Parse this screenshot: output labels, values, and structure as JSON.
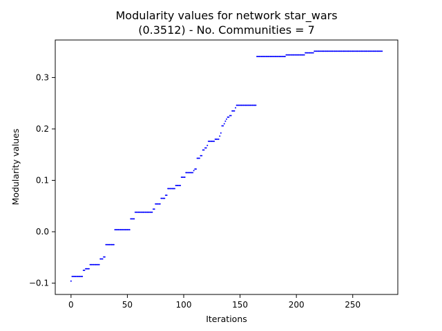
{
  "chart_data": {
    "type": "scatter",
    "title": "Modularity values for network star_wars",
    "subtitle": "(0.3512) - No. Communities = 7",
    "xlabel": "Iterations",
    "ylabel": "Modularity values",
    "xlim": [
      -14,
      290
    ],
    "ylim": [
      -0.122,
      0.373
    ],
    "x_ticks": [
      0,
      50,
      100,
      150,
      200,
      250
    ],
    "x_tick_labels": [
      "0",
      "50",
      "100",
      "150",
      "200",
      "250"
    ],
    "y_ticks": [
      -0.1,
      0.0,
      0.1,
      0.2,
      0.3
    ],
    "y_tick_labels": [
      "−0.1",
      "0.0",
      "0.1",
      "0.2",
      "0.3"
    ],
    "grid": false,
    "marker_color": "#0000ff",
    "series": [
      {
        "segments": [
          {
            "x_start": 0,
            "x_end": 0,
            "y": -0.096
          },
          {
            "x_start": 1,
            "x_end": 10,
            "y": -0.087
          },
          {
            "x_start": 11,
            "x_end": 12,
            "y": -0.075
          },
          {
            "x_start": 13,
            "x_end": 16,
            "y": -0.072
          },
          {
            "x_start": 17,
            "x_end": 25,
            "y": -0.064
          },
          {
            "x_start": 26,
            "x_end": 28,
            "y": -0.053
          },
          {
            "x_start": 29,
            "x_end": 30,
            "y": -0.049
          },
          {
            "x_start": 31,
            "x_end": 38,
            "y": -0.025
          },
          {
            "x_start": 39,
            "x_end": 52,
            "y": 0.004
          },
          {
            "x_start": 53,
            "x_end": 56,
            "y": 0.025
          },
          {
            "x_start": 57,
            "x_end": 72,
            "y": 0.038
          },
          {
            "x_start": 73,
            "x_end": 74,
            "y": 0.044
          },
          {
            "x_start": 75,
            "x_end": 79,
            "y": 0.054
          },
          {
            "x_start": 80,
            "x_end": 83,
            "y": 0.065
          },
          {
            "x_start": 84,
            "x_end": 85,
            "y": 0.071
          },
          {
            "x_start": 86,
            "x_end": 92,
            "y": 0.084
          },
          {
            "x_start": 93,
            "x_end": 97,
            "y": 0.09
          },
          {
            "x_start": 98,
            "x_end": 101,
            "y": 0.106
          },
          {
            "x_start": 102,
            "x_end": 108,
            "y": 0.115
          },
          {
            "x_start": 109,
            "x_end": 109,
            "y": 0.119
          },
          {
            "x_start": 110,
            "x_end": 111,
            "y": 0.122
          },
          {
            "x_start": 112,
            "x_end": 114,
            "y": 0.143
          },
          {
            "x_start": 115,
            "x_end": 116,
            "y": 0.148
          },
          {
            "x_start": 117,
            "x_end": 118,
            "y": 0.159
          },
          {
            "x_start": 119,
            "x_end": 120,
            "y": 0.163
          },
          {
            "x_start": 121,
            "x_end": 121,
            "y": 0.168
          },
          {
            "x_start": 122,
            "x_end": 127,
            "y": 0.176
          },
          {
            "x_start": 128,
            "x_end": 131,
            "y": 0.18
          },
          {
            "x_start": 132,
            "x_end": 132,
            "y": 0.186
          },
          {
            "x_start": 133,
            "x_end": 133,
            "y": 0.192
          },
          {
            "x_start": 134,
            "x_end": 135,
            "y": 0.206
          },
          {
            "x_start": 136,
            "x_end": 136,
            "y": 0.21
          },
          {
            "x_start": 137,
            "x_end": 137,
            "y": 0.215
          },
          {
            "x_start": 138,
            "x_end": 138,
            "y": 0.219
          },
          {
            "x_start": 139,
            "x_end": 140,
            "y": 0.223
          },
          {
            "x_start": 141,
            "x_end": 142,
            "y": 0.226
          },
          {
            "x_start": 143,
            "x_end": 145,
            "y": 0.235
          },
          {
            "x_start": 146,
            "x_end": 146,
            "y": 0.241
          },
          {
            "x_start": 147,
            "x_end": 164,
            "y": 0.246
          },
          {
            "x_start": 165,
            "x_end": 190,
            "y": 0.341
          },
          {
            "x_start": 191,
            "x_end": 207,
            "y": 0.344
          },
          {
            "x_start": 208,
            "x_end": 215,
            "y": 0.348
          },
          {
            "x_start": 216,
            "x_end": 276,
            "y": 0.3512
          }
        ]
      }
    ]
  }
}
